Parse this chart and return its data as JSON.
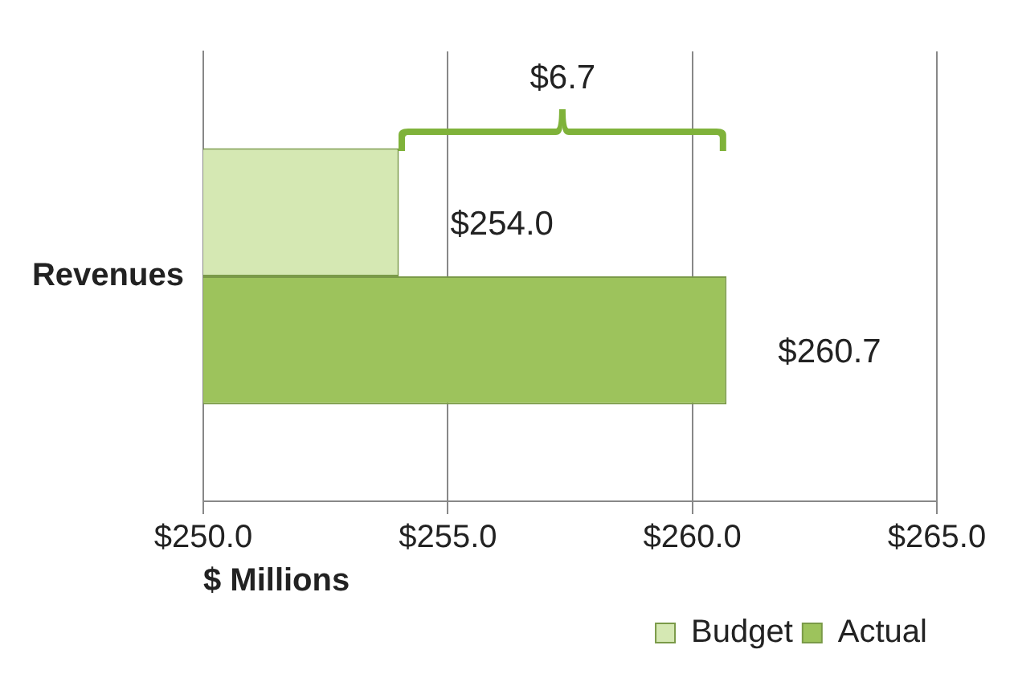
{
  "chart_data": {
    "type": "bar",
    "orientation": "horizontal",
    "xlabel": "$ Millions",
    "categories": [
      "Revenues"
    ],
    "series": [
      {
        "name": "Budget",
        "color": "#d5e8b3",
        "values": [
          254.0
        ],
        "value_labels": [
          "$254.0"
        ]
      },
      {
        "name": "Actual",
        "color": "#9dc35c",
        "values": [
          260.7
        ],
        "value_labels": [
          "$260.7"
        ]
      }
    ],
    "xlim": [
      250,
      265
    ],
    "xticks": [
      {
        "value": 250,
        "label": "$250.0"
      },
      {
        "value": 255,
        "label": "$255.0"
      },
      {
        "value": 260,
        "label": "$260.0"
      },
      {
        "value": 265,
        "label": "$265.0"
      }
    ],
    "annotations": [
      "$6.7"
    ],
    "grid": "x",
    "legend": "bottom right"
  }
}
